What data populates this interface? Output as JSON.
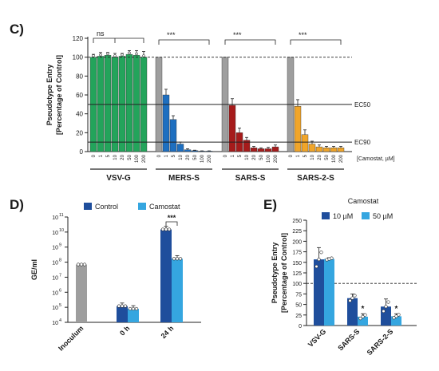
{
  "panels": {
    "c": "C)",
    "d": "D)",
    "e": "E)"
  },
  "chart_data": [
    {
      "panel": "C)",
      "type": "bar",
      "ylabel_line1": "Pseudotype Entry",
      "ylabel_line2": "[Percentage of Control]",
      "ylim": [
        0,
        120
      ],
      "yticks": [
        "0",
        "20",
        "40",
        "60",
        "80",
        "100",
        "120"
      ],
      "x_unit_label": "[Camostat, µM]",
      "concentrations": [
        "0",
        "1",
        "5",
        "10",
        "20",
        "50",
        "100",
        "200"
      ],
      "reference_lines": [
        {
          "label": "EC50",
          "value": 50
        },
        {
          "label": "EC90",
          "value": 10
        }
      ],
      "dashed_line": 100,
      "groups": [
        {
          "name": "VSV-G",
          "color": "#23a45b",
          "values": [
            100,
            101,
            102,
            100,
            101,
            103,
            102,
            100
          ],
          "errors": [
            3,
            4,
            3,
            4,
            3,
            4,
            5,
            6
          ],
          "significance": "ns"
        },
        {
          "name": "MERS-S",
          "color": "#1e6fc0",
          "values": [
            100,
            60,
            34,
            8,
            2,
            1,
            0.5,
            0.5
          ],
          "errors": [
            0,
            6,
            4,
            2,
            1,
            0.5,
            0.3,
            0.3
          ],
          "significance": "***"
        },
        {
          "name": "SARS-S",
          "color": "#a61b1b",
          "values": [
            100,
            49,
            20,
            12,
            4,
            3,
            3,
            5
          ],
          "errors": [
            0,
            7,
            5,
            3,
            1.5,
            1,
            1.5,
            2
          ],
          "significance": "***"
        },
        {
          "name": "SARS-2-S",
          "color": "#f0a52a",
          "values": [
            100,
            48,
            18,
            8,
            5,
            4,
            4,
            4
          ],
          "errors": [
            0,
            7,
            5,
            3,
            2,
            1.5,
            1.5,
            1.5
          ],
          "significance": "***"
        }
      ]
    },
    {
      "panel": "D)",
      "type": "bar",
      "ylabel": "GE/ml",
      "yscale": "log",
      "ylim": [
        10000,
        100000000000
      ],
      "ytick_base": "10",
      "ytick_exponents": [
        "4",
        "5",
        "6",
        "7",
        "8",
        "9",
        "10",
        "11"
      ],
      "categories": [
        "Inoculum",
        "0 h",
        "24 h"
      ],
      "inoculum": {
        "value": 70000000,
        "color": "#9e9e9e"
      },
      "series": [
        {
          "name": "Control",
          "color": "#1f4e9c",
          "values": [
            null,
            120000,
            15000000000
          ]
        },
        {
          "name": "Camostat",
          "color": "#35a6e0",
          "values": [
            null,
            80000,
            170000000
          ]
        }
      ],
      "significance": "***"
    },
    {
      "panel": "E)",
      "type": "bar",
      "legend_title": "Camostat",
      "ylabel_line1": "Pseudotype Entry",
      "ylabel_line2": "[Percentage of Control]",
      "ylim": [
        0,
        250
      ],
      "yticks": [
        "0",
        "25",
        "50",
        "75",
        "100",
        "125",
        "150",
        "175",
        "200",
        "225",
        "250"
      ],
      "dashed_line": 100,
      "categories": [
        "VSV-G",
        "SARS-S",
        "SARS-2-S"
      ],
      "series": [
        {
          "name": "10 µM",
          "color": "#1f4e9c",
          "values": [
            157,
            65,
            45
          ],
          "errors": [
            28,
            10,
            18
          ]
        },
        {
          "name": "50 µM",
          "color": "#35a6e0",
          "values": [
            158,
            21,
            22
          ],
          "errors": [
            3,
            7,
            6
          ]
        }
      ],
      "significance": [
        "",
        "*",
        "*"
      ]
    }
  ]
}
